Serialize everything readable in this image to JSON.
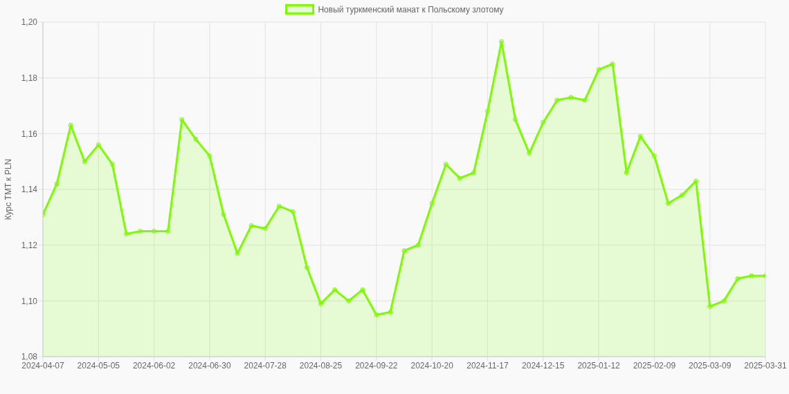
{
  "chart_data": {
    "type": "area",
    "ylabel": "Курс TMT к PLN",
    "categories": [
      "2024-04-07",
      null,
      null,
      null,
      "2024-05-05",
      null,
      null,
      null,
      "2024-06-02",
      null,
      null,
      null,
      "2024-06-30",
      null,
      null,
      null,
      "2024-07-28",
      null,
      null,
      null,
      "2024-08-25",
      null,
      null,
      null,
      "2024-09-22",
      null,
      null,
      null,
      "2024-10-20",
      null,
      null,
      null,
      "2024-11-17",
      null,
      null,
      null,
      "2024-12-15",
      null,
      null,
      null,
      "2025-01-12",
      null,
      null,
      null,
      "2025-02-09",
      null,
      null,
      null,
      "2025-03-09",
      null,
      null,
      null,
      "2025-03-31"
    ],
    "series": [
      {
        "name": "Новый туркменский манат к Польскому злотому",
        "color": "#7cfc00",
        "values": [
          1.131,
          1.142,
          1.163,
          1.15,
          1.156,
          1.149,
          1.124,
          1.125,
          1.125,
          1.125,
          1.165,
          1.158,
          1.152,
          1.131,
          1.117,
          1.127,
          1.126,
          1.134,
          1.132,
          1.112,
          1.099,
          1.104,
          1.1,
          1.104,
          1.095,
          1.096,
          1.118,
          1.12,
          1.135,
          1.149,
          1.144,
          1.146,
          1.168,
          1.193,
          1.165,
          1.153,
          1.164,
          1.172,
          1.173,
          1.172,
          1.183,
          1.185,
          1.146,
          1.159,
          1.152,
          1.135,
          1.138,
          1.143,
          1.098,
          1.1,
          1.108,
          1.109,
          1.109
        ]
      }
    ],
    "ylim": [
      1.08,
      1.2
    ],
    "yticks": [
      {
        "value": 1.08,
        "label": "1,08"
      },
      {
        "value": 1.1,
        "label": "1,10"
      },
      {
        "value": 1.12,
        "label": "1,12"
      },
      {
        "value": 1.14,
        "label": "1,14"
      },
      {
        "value": 1.16,
        "label": "1,16"
      },
      {
        "value": 1.18,
        "label": "1,18"
      },
      {
        "value": 1.2,
        "label": "1,20"
      }
    ],
    "grid": true,
    "legend": "top",
    "marker": "circle"
  }
}
